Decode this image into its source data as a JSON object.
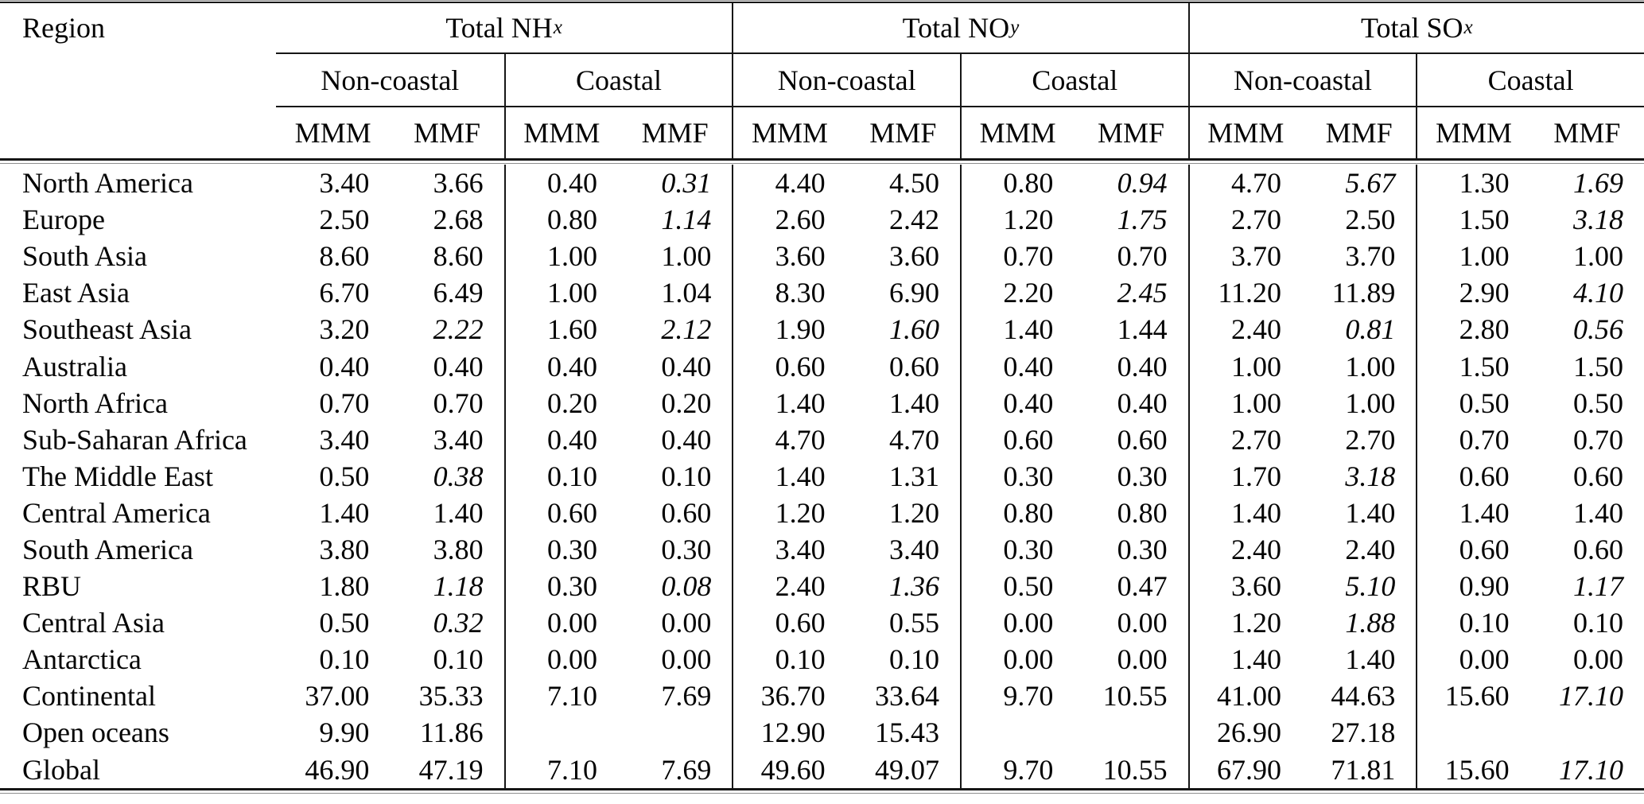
{
  "colors": {
    "background": "#ffffff",
    "text": "#040404",
    "rule": "#161616",
    "rule_light": "#8f8f8f"
  },
  "table": {
    "region_header": "Region",
    "groups": [
      {
        "label": "Total NH",
        "subscript": "x"
      },
      {
        "label": "Total NO",
        "subscript": "y"
      },
      {
        "label": "Total SO",
        "subscript": "x"
      }
    ],
    "subgroup_labels": [
      "Non-coastal",
      "Coastal"
    ],
    "measure_labels": [
      "MMM",
      "MMF"
    ],
    "rows": [
      {
        "region": "North America",
        "values": [
          "3.40",
          "3.66",
          "0.40",
          "0.31",
          "4.40",
          "4.50",
          "0.80",
          "0.94",
          "4.70",
          "5.67",
          "1.30",
          "1.69"
        ],
        "italics": [
          3,
          7,
          9,
          11
        ]
      },
      {
        "region": "Europe",
        "values": [
          "2.50",
          "2.68",
          "0.80",
          "1.14",
          "2.60",
          "2.42",
          "1.20",
          "1.75",
          "2.70",
          "2.50",
          "1.50",
          "3.18"
        ],
        "italics": [
          3,
          7,
          11
        ]
      },
      {
        "region": "South Asia",
        "values": [
          "8.60",
          "8.60",
          "1.00",
          "1.00",
          "3.60",
          "3.60",
          "0.70",
          "0.70",
          "3.70",
          "3.70",
          "1.00",
          "1.00"
        ],
        "italics": []
      },
      {
        "region": "East Asia",
        "values": [
          "6.70",
          "6.49",
          "1.00",
          "1.04",
          "8.30",
          "6.90",
          "2.20",
          "2.45",
          "11.20",
          "11.89",
          "2.90",
          "4.10"
        ],
        "italics": [
          7,
          11
        ]
      },
      {
        "region": "Southeast Asia",
        "values": [
          "3.20",
          "2.22",
          "1.60",
          "2.12",
          "1.90",
          "1.60",
          "1.40",
          "1.44",
          "2.40",
          "0.81",
          "2.80",
          "0.56"
        ],
        "italics": [
          1,
          3,
          5,
          9,
          11
        ]
      },
      {
        "region": "Australia",
        "values": [
          "0.40",
          "0.40",
          "0.40",
          "0.40",
          "0.60",
          "0.60",
          "0.40",
          "0.40",
          "1.00",
          "1.00",
          "1.50",
          "1.50"
        ],
        "italics": []
      },
      {
        "region": "North Africa",
        "values": [
          "0.70",
          "0.70",
          "0.20",
          "0.20",
          "1.40",
          "1.40",
          "0.40",
          "0.40",
          "1.00",
          "1.00",
          "0.50",
          "0.50"
        ],
        "italics": []
      },
      {
        "region": "Sub-Saharan Africa",
        "values": [
          "3.40",
          "3.40",
          "0.40",
          "0.40",
          "4.70",
          "4.70",
          "0.60",
          "0.60",
          "2.70",
          "2.70",
          "0.70",
          "0.70"
        ],
        "italics": []
      },
      {
        "region": "The Middle East",
        "values": [
          "0.50",
          "0.38",
          "0.10",
          "0.10",
          "1.40",
          "1.31",
          "0.30",
          "0.30",
          "1.70",
          "3.18",
          "0.60",
          "0.60"
        ],
        "italics": [
          1,
          9
        ]
      },
      {
        "region": "Central America",
        "values": [
          "1.40",
          "1.40",
          "0.60",
          "0.60",
          "1.20",
          "1.20",
          "0.80",
          "0.80",
          "1.40",
          "1.40",
          "1.40",
          "1.40"
        ],
        "italics": []
      },
      {
        "region": "South America",
        "values": [
          "3.80",
          "3.80",
          "0.30",
          "0.30",
          "3.40",
          "3.40",
          "0.30",
          "0.30",
          "2.40",
          "2.40",
          "0.60",
          "0.60"
        ],
        "italics": []
      },
      {
        "region": "RBU",
        "values": [
          "1.80",
          "1.18",
          "0.30",
          "0.08",
          "2.40",
          "1.36",
          "0.50",
          "0.47",
          "3.60",
          "5.10",
          "0.90",
          "1.17"
        ],
        "italics": [
          1,
          3,
          5,
          9,
          11
        ]
      },
      {
        "region": "Central Asia",
        "values": [
          "0.50",
          "0.32",
          "0.00",
          "0.00",
          "0.60",
          "0.55",
          "0.00",
          "0.00",
          "1.20",
          "1.88",
          "0.10",
          "0.10"
        ],
        "italics": [
          1,
          9
        ]
      },
      {
        "region": "Antarctica",
        "values": [
          "0.10",
          "0.10",
          "0.00",
          "0.00",
          "0.10",
          "0.10",
          "0.00",
          "0.00",
          "1.40",
          "1.40",
          "0.00",
          "0.00"
        ],
        "italics": []
      },
      {
        "region": "Continental",
        "values": [
          "37.00",
          "35.33",
          "7.10",
          "7.69",
          "36.70",
          "33.64",
          "9.70",
          "10.55",
          "41.00",
          "44.63",
          "15.60",
          "17.10"
        ],
        "italics": [
          11
        ]
      },
      {
        "region": "Open oceans",
        "values": [
          "9.90",
          "11.86",
          "",
          "",
          "12.90",
          "15.43",
          "",
          "",
          "26.90",
          "27.18",
          "",
          ""
        ],
        "italics": []
      },
      {
        "region": "Global",
        "values": [
          "46.90",
          "47.19",
          "7.10",
          "7.69",
          "49.60",
          "49.07",
          "9.70",
          "10.55",
          "67.90",
          "71.81",
          "15.60",
          "17.10"
        ],
        "italics": [
          11
        ]
      }
    ]
  }
}
